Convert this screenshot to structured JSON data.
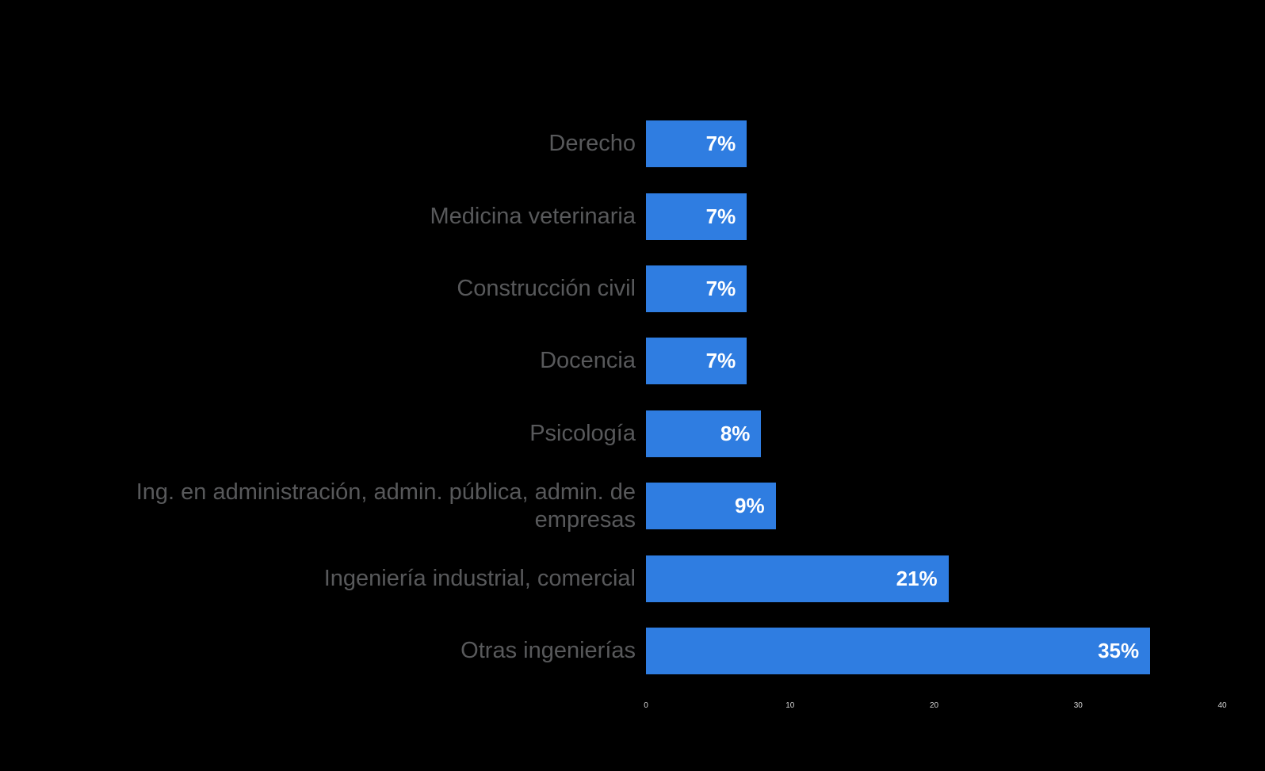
{
  "chart_data": {
    "type": "bar",
    "orientation": "horizontal",
    "title": "",
    "xlabel": "",
    "ylabel": "",
    "categories": [
      "Derecho",
      "Medicina veterinaria",
      "Construcción civil",
      "Docencia",
      "Psicología",
      "Ing. en administración, admin. pública, admin. de empresas",
      "Ingeniería industrial, comercial",
      "Otras ingenierías"
    ],
    "values": [
      7,
      7,
      7,
      7,
      8,
      9,
      21,
      35
    ],
    "value_labels": [
      "7%",
      "7%",
      "7%",
      "7%",
      "8%",
      "9%",
      "21%",
      "35%"
    ],
    "xlim": [
      0,
      40
    ],
    "x_ticks": [
      0,
      10,
      20,
      30,
      40
    ],
    "grid": false,
    "legend_position": "none",
    "colors": {
      "bar": "#2F7DE1",
      "category_text": "#58595B",
      "value_text": "#FFFFFF",
      "tick_text": "#D4D4D4",
      "background": "#000000"
    }
  }
}
